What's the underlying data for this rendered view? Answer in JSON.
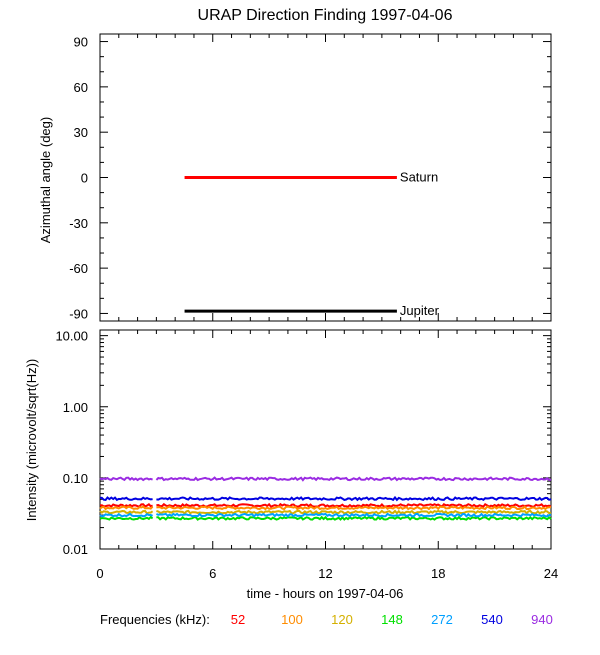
{
  "title": "URAP Direction Finding  1997-04-06",
  "chart_data": [
    {
      "type": "line",
      "ylabel": "Azimuthal angle (deg)",
      "ylim": [
        -95,
        95
      ],
      "xlim": [
        0,
        24
      ],
      "yticks": [
        90,
        60,
        30,
        0,
        -30,
        -60,
        -90
      ],
      "series": [
        {
          "name": "Saturn",
          "x": [
            4.5,
            15.8
          ],
          "y": [
            0,
            0
          ],
          "color": "#ff0000"
        },
        {
          "name": "Jupiter",
          "x": [
            4.5,
            15.8
          ],
          "y": [
            -88.5,
            -88.5
          ],
          "color": "#000000"
        }
      ]
    },
    {
      "type": "line",
      "log_y": true,
      "ylabel": "Intensity (microvolt/sqrt(Hz))",
      "xlabel": "time - hours on 1997-04-06",
      "ylim": [
        0.01,
        12
      ],
      "xlim": [
        0,
        24
      ],
      "yticks": [
        "10.00",
        "1.00",
        "0.10",
        "0.01"
      ],
      "ytick_values": [
        10,
        1,
        0.1,
        0.01
      ],
      "xticks": [
        "0",
        "6",
        "12",
        "18",
        "24"
      ],
      "xtick_values": [
        0,
        6,
        12,
        18,
        24
      ],
      "gap_hours": [
        2.85,
        3.0
      ],
      "legend_label": "Frequencies (kHz):",
      "series": [
        {
          "name": "52",
          "color": "#ff0000",
          "level": 0.041
        },
        {
          "name": "100",
          "color": "#ff8c00",
          "level": 0.038
        },
        {
          "name": "120",
          "color": "#d4b000",
          "level": 0.033
        },
        {
          "name": "148",
          "color": "#00e000",
          "level": 0.027
        },
        {
          "name": "272",
          "color": "#00a0ff",
          "level": 0.03
        },
        {
          "name": "540",
          "color": "#0000e0",
          "level": 0.051
        },
        {
          "name": "940",
          "color": "#9a2be2",
          "level": 0.097
        }
      ]
    }
  ]
}
